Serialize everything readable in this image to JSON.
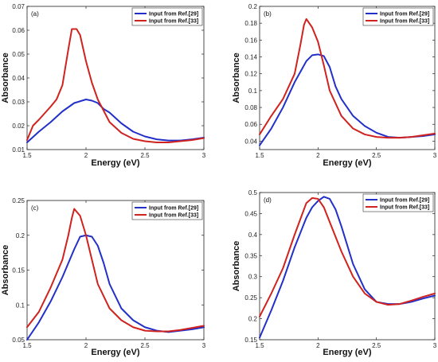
{
  "colors": {
    "series_1": "#2230c8",
    "series_2": "#d0221e"
  },
  "chart_data": [
    {
      "type": "line",
      "panel_label": "(a)",
      "xlabel": "Energy (eV)",
      "ylabel": "Absorbance",
      "xlim": [
        1.5,
        3
      ],
      "ylim": [
        0.01,
        0.07
      ],
      "xticks": [
        "1.5",
        "2",
        "2.5",
        "3"
      ],
      "yticks": [
        "0.01",
        "0.02",
        "0.03",
        "0.04",
        "0.05",
        "0.06",
        "0.07"
      ],
      "legend_position": "top-right",
      "series": [
        {
          "name": "Input from Ref.[29]",
          "x": [
            1.5,
            1.6,
            1.7,
            1.8,
            1.9,
            2.0,
            2.05,
            2.1,
            2.15,
            2.2,
            2.3,
            2.4,
            2.5,
            2.6,
            2.7,
            2.8,
            2.9,
            3.0
          ],
          "y": [
            0.013,
            0.0175,
            0.0215,
            0.026,
            0.0295,
            0.031,
            0.0305,
            0.0295,
            0.027,
            0.0255,
            0.021,
            0.0175,
            0.0155,
            0.0143,
            0.0138,
            0.0138,
            0.0143,
            0.015
          ]
        },
        {
          "name": "Input from Ref.[33]",
          "x": [
            1.5,
            1.55,
            1.6,
            1.7,
            1.75,
            1.8,
            1.85,
            1.88,
            1.92,
            1.95,
            2.0,
            2.05,
            2.1,
            2.2,
            2.3,
            2.4,
            2.5,
            2.6,
            2.7,
            2.8,
            2.9,
            3.0
          ],
          "y": [
            0.014,
            0.02,
            0.0225,
            0.028,
            0.031,
            0.037,
            0.052,
            0.0605,
            0.0605,
            0.058,
            0.047,
            0.038,
            0.031,
            0.0215,
            0.017,
            0.0145,
            0.0135,
            0.013,
            0.013,
            0.0135,
            0.014,
            0.0148
          ]
        }
      ]
    },
    {
      "type": "line",
      "panel_label": "(b)",
      "xlabel": "Energy (eV)",
      "ylabel": "Absorbance",
      "xlim": [
        1.5,
        3
      ],
      "ylim": [
        0.03,
        0.2
      ],
      "xticks": [
        "1.5",
        "2",
        "2.5",
        "3"
      ],
      "yticks": [
        "0.04",
        "0.06",
        "0.08",
        "0.1",
        "0.12",
        "0.14",
        "0.16",
        "0.18",
        "0.2"
      ],
      "legend_position": "top-right",
      "series": [
        {
          "name": "Input from Ref.[29]",
          "x": [
            1.5,
            1.6,
            1.7,
            1.8,
            1.9,
            1.95,
            2.0,
            2.05,
            2.1,
            2.15,
            2.2,
            2.3,
            2.4,
            2.5,
            2.6,
            2.7,
            2.8,
            2.9,
            3.0
          ],
          "y": [
            0.035,
            0.055,
            0.08,
            0.11,
            0.135,
            0.142,
            0.143,
            0.141,
            0.128,
            0.105,
            0.09,
            0.07,
            0.058,
            0.05,
            0.045,
            0.044,
            0.045,
            0.046,
            0.048
          ]
        },
        {
          "name": "Input from Ref.[33]",
          "x": [
            1.5,
            1.6,
            1.7,
            1.8,
            1.85,
            1.88,
            1.9,
            1.95,
            2.0,
            2.05,
            2.1,
            2.2,
            2.3,
            2.4,
            2.5,
            2.6,
            2.7,
            2.8,
            2.9,
            3.0
          ],
          "y": [
            0.048,
            0.07,
            0.09,
            0.12,
            0.155,
            0.178,
            0.185,
            0.175,
            0.158,
            0.13,
            0.1,
            0.07,
            0.055,
            0.048,
            0.045,
            0.044,
            0.044,
            0.045,
            0.047,
            0.049
          ]
        }
      ]
    },
    {
      "type": "line",
      "panel_label": "(c)",
      "xlabel": "Energy (eV)",
      "ylabel": "Absorbance",
      "xlim": [
        1.5,
        3
      ],
      "ylim": [
        0.05,
        0.25
      ],
      "xticks": [
        "1.5",
        "2",
        "2.5",
        "3"
      ],
      "yticks": [
        "0.05",
        "0.1",
        "0.15",
        "0.2",
        "0.25"
      ],
      "legend_position": "top-right",
      "series": [
        {
          "name": "Input from Ref.[29]",
          "x": [
            1.5,
            1.6,
            1.7,
            1.8,
            1.9,
            1.95,
            2.0,
            2.05,
            2.1,
            2.15,
            2.2,
            2.3,
            2.4,
            2.5,
            2.6,
            2.7,
            2.8,
            2.9,
            3.0
          ],
          "y": [
            0.05,
            0.075,
            0.105,
            0.14,
            0.18,
            0.198,
            0.2,
            0.198,
            0.185,
            0.16,
            0.13,
            0.095,
            0.078,
            0.068,
            0.063,
            0.061,
            0.063,
            0.065,
            0.068
          ]
        },
        {
          "name": "Input from Ref.[33]",
          "x": [
            1.5,
            1.6,
            1.7,
            1.8,
            1.85,
            1.88,
            1.9,
            1.95,
            2.0,
            2.05,
            2.1,
            2.2,
            2.3,
            2.4,
            2.5,
            2.6,
            2.7,
            2.8,
            2.9,
            3.0
          ],
          "y": [
            0.068,
            0.09,
            0.125,
            0.165,
            0.2,
            0.225,
            0.238,
            0.228,
            0.2,
            0.165,
            0.13,
            0.095,
            0.078,
            0.068,
            0.063,
            0.062,
            0.062,
            0.064,
            0.067,
            0.07
          ]
        }
      ]
    },
    {
      "type": "line",
      "panel_label": "(d)",
      "xlabel": "Energy (eV)",
      "ylabel": "Absorbance",
      "xlim": [
        1.5,
        3
      ],
      "ylim": [
        0.15,
        0.5
      ],
      "xticks": [
        "1.5",
        "2",
        "2.5",
        "3"
      ],
      "yticks": [
        "0.15",
        "0.2",
        "0.25",
        "0.3",
        "0.35",
        "0.4",
        "0.45",
        "0.5"
      ],
      "legend_position": "top-right",
      "series": [
        {
          "name": "Input from Ref.[29]",
          "x": [
            1.5,
            1.6,
            1.7,
            1.8,
            1.9,
            1.95,
            2.0,
            2.05,
            2.1,
            2.15,
            2.2,
            2.3,
            2.4,
            2.5,
            2.6,
            2.7,
            2.8,
            2.9,
            3.0
          ],
          "y": [
            0.155,
            0.22,
            0.29,
            0.37,
            0.44,
            0.465,
            0.48,
            0.49,
            0.485,
            0.46,
            0.42,
            0.33,
            0.27,
            0.24,
            0.235,
            0.235,
            0.24,
            0.248,
            0.255
          ]
        },
        {
          "name": "Input from Ref.[33]",
          "x": [
            1.5,
            1.6,
            1.7,
            1.8,
            1.9,
            1.95,
            2.0,
            2.05,
            2.1,
            2.2,
            2.3,
            2.4,
            2.5,
            2.6,
            2.7,
            2.8,
            2.9,
            3.0
          ],
          "y": [
            0.205,
            0.26,
            0.32,
            0.4,
            0.475,
            0.487,
            0.485,
            0.465,
            0.43,
            0.36,
            0.3,
            0.26,
            0.24,
            0.233,
            0.235,
            0.243,
            0.252,
            0.26
          ]
        }
      ]
    }
  ]
}
